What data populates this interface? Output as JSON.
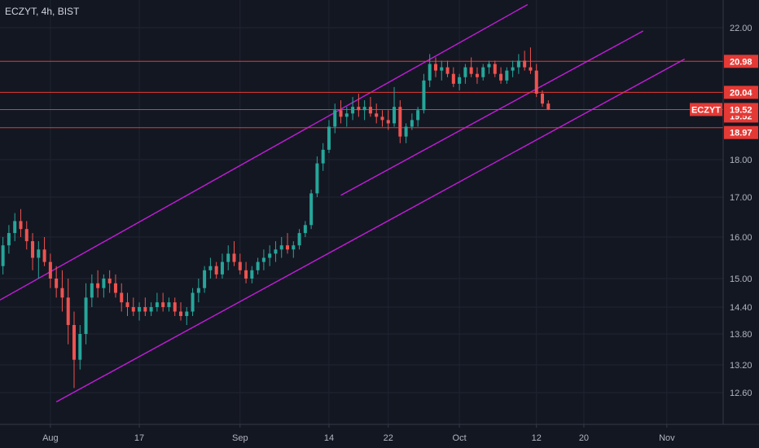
{
  "header": {
    "title": "ECZYT, 4h, BIST"
  },
  "chart_data": {
    "type": "candlestick",
    "symbol": "ECZYT",
    "interval": "4h",
    "exchange": "BIST",
    "ylim": [
      12.0,
      22.7
    ],
    "y_ticks": [
      "22.00",
      "18.00",
      "17.00",
      "16.00",
      "15.00",
      "14.40",
      "13.80",
      "13.20",
      "12.60"
    ],
    "x_ticks": [
      {
        "label": "Aug",
        "i": 8
      },
      {
        "label": "17",
        "i": 23
      },
      {
        "label": "Sep",
        "i": 40
      },
      {
        "label": "14",
        "i": 55
      },
      {
        "label": "22",
        "i": 65
      },
      {
        "label": "Oct",
        "i": 77
      },
      {
        "label": "12",
        "i": 90
      },
      {
        "label": "20",
        "i": 98
      },
      {
        "label": "Nov",
        "i": 112
      }
    ],
    "n_slots": 122,
    "horizontal_levels": [
      {
        "value": 20.98,
        "label": "20.98",
        "color": "#e53935"
      },
      {
        "value": 20.04,
        "label": "20.04",
        "color": "#e53935"
      },
      {
        "value": 19.52,
        "label": "19.52",
        "color": "#e53935"
      },
      {
        "value": 18.97,
        "label": "18.97",
        "color": "#e53935"
      }
    ],
    "last_price": {
      "value": 19.52,
      "label": "19.52",
      "symbol_label": "ECZYT",
      "color": "#e53935"
    },
    "channel_lines": [
      {
        "i1": -0.5,
        "p1": 14.55,
        "i2": 88.5,
        "p2": 22.7
      },
      {
        "i1": 57,
        "p1": 17.05,
        "i2": 108,
        "p2": 21.9
      },
      {
        "i1": 9,
        "p1": 12.4,
        "i2": 115,
        "p2": 21.05
      }
    ],
    "up_color": "#26a69a",
    "down_color": "#ef5350",
    "channel_color": "#c21cd9",
    "candles": [
      [
        15.3,
        16.0,
        15.1,
        15.8
      ],
      [
        15.8,
        16.3,
        15.6,
        16.1
      ],
      [
        16.1,
        16.6,
        15.9,
        16.4
      ],
      [
        16.4,
        16.7,
        16.0,
        16.2
      ],
      [
        16.2,
        16.4,
        15.7,
        15.9
      ],
      [
        15.9,
        16.1,
        15.2,
        15.5
      ],
      [
        15.5,
        15.9,
        15.0,
        15.7
      ],
      [
        15.7,
        16.0,
        15.3,
        15.4
      ],
      [
        15.4,
        15.6,
        14.8,
        15.0
      ],
      [
        15.0,
        15.3,
        14.6,
        14.8
      ],
      [
        14.8,
        15.2,
        14.3,
        14.6
      ],
      [
        14.6,
        15.0,
        13.6,
        14.0
      ],
      [
        14.0,
        14.3,
        12.7,
        13.3
      ],
      [
        13.3,
        14.0,
        13.1,
        13.8
      ],
      [
        13.8,
        14.9,
        13.6,
        14.6
      ],
      [
        14.6,
        15.1,
        14.4,
        14.9
      ],
      [
        14.9,
        15.2,
        14.6,
        14.8
      ],
      [
        14.8,
        15.1,
        14.6,
        15.0
      ],
      [
        15.0,
        15.2,
        14.7,
        14.9
      ],
      [
        14.9,
        15.1,
        14.6,
        14.7
      ],
      [
        14.7,
        14.9,
        14.3,
        14.5
      ],
      [
        14.5,
        14.7,
        14.2,
        14.4
      ],
      [
        14.4,
        14.6,
        14.2,
        14.3
      ],
      [
        14.3,
        14.5,
        14.1,
        14.4
      ],
      [
        14.4,
        14.6,
        14.2,
        14.3
      ],
      [
        14.3,
        14.5,
        14.2,
        14.4
      ],
      [
        14.4,
        14.7,
        14.3,
        14.5
      ],
      [
        14.5,
        14.7,
        14.3,
        14.4
      ],
      [
        14.4,
        14.6,
        14.3,
        14.5
      ],
      [
        14.5,
        14.6,
        14.2,
        14.3
      ],
      [
        14.3,
        14.5,
        14.1,
        14.2
      ],
      [
        14.2,
        14.4,
        14.0,
        14.3
      ],
      [
        14.3,
        14.8,
        14.2,
        14.7
      ],
      [
        14.7,
        15.0,
        14.5,
        14.8
      ],
      [
        14.8,
        15.3,
        14.7,
        15.2
      ],
      [
        15.2,
        15.5,
        15.0,
        15.3
      ],
      [
        15.3,
        15.4,
        15.0,
        15.1
      ],
      [
        15.1,
        15.6,
        15.0,
        15.4
      ],
      [
        15.4,
        15.8,
        15.2,
        15.6
      ],
      [
        15.6,
        15.9,
        15.3,
        15.4
      ],
      [
        15.4,
        15.6,
        15.1,
        15.2
      ],
      [
        15.2,
        15.4,
        14.9,
        15.0
      ],
      [
        15.0,
        15.3,
        14.9,
        15.2
      ],
      [
        15.2,
        15.5,
        15.1,
        15.4
      ],
      [
        15.4,
        15.7,
        15.2,
        15.5
      ],
      [
        15.5,
        15.8,
        15.3,
        15.6
      ],
      [
        15.6,
        15.9,
        15.4,
        15.7
      ],
      [
        15.7,
        16.0,
        15.5,
        15.8
      ],
      [
        15.8,
        16.1,
        15.6,
        15.7
      ],
      [
        15.7,
        15.9,
        15.5,
        15.8
      ],
      [
        15.8,
        16.2,
        15.7,
        16.1
      ],
      [
        16.1,
        16.4,
        16.0,
        16.3
      ],
      [
        16.3,
        17.2,
        16.2,
        17.1
      ],
      [
        17.1,
        18.1,
        17.0,
        17.9
      ],
      [
        17.9,
        18.5,
        17.7,
        18.3
      ],
      [
        18.3,
        19.2,
        18.2,
        19.0
      ],
      [
        19.0,
        19.7,
        18.8,
        19.5
      ],
      [
        19.5,
        19.8,
        19.1,
        19.3
      ],
      [
        19.3,
        19.6,
        19.0,
        19.4
      ],
      [
        19.4,
        19.9,
        19.2,
        19.6
      ],
      [
        19.6,
        20.0,
        19.3,
        19.5
      ],
      [
        19.5,
        19.8,
        19.2,
        19.6
      ],
      [
        19.6,
        19.9,
        19.3,
        19.4
      ],
      [
        19.4,
        19.7,
        19.1,
        19.3
      ],
      [
        19.3,
        19.5,
        19.0,
        19.2
      ],
      [
        19.2,
        19.5,
        18.9,
        19.1
      ],
      [
        19.1,
        20.2,
        19.0,
        19.6
      ],
      [
        19.6,
        19.8,
        18.5,
        18.7
      ],
      [
        18.7,
        19.1,
        18.5,
        19.0
      ],
      [
        19.0,
        19.4,
        18.9,
        19.2
      ],
      [
        19.2,
        19.6,
        19.0,
        19.5
      ],
      [
        19.5,
        20.6,
        19.4,
        20.4
      ],
      [
        20.4,
        21.2,
        20.2,
        20.9
      ],
      [
        20.9,
        21.1,
        20.5,
        20.7
      ],
      [
        20.7,
        21.0,
        20.4,
        20.8
      ],
      [
        20.8,
        21.0,
        20.5,
        20.6
      ],
      [
        20.6,
        20.8,
        20.2,
        20.3
      ],
      [
        20.3,
        20.6,
        20.1,
        20.5
      ],
      [
        20.5,
        20.9,
        20.3,
        20.8
      ],
      [
        20.8,
        21.1,
        20.5,
        20.6
      ],
      [
        20.6,
        20.8,
        20.3,
        20.5
      ],
      [
        20.5,
        20.9,
        20.4,
        20.8
      ],
      [
        20.8,
        21.0,
        20.6,
        20.9
      ],
      [
        20.9,
        21.0,
        20.5,
        20.6
      ],
      [
        20.6,
        20.8,
        20.3,
        20.4
      ],
      [
        20.4,
        20.8,
        20.3,
        20.7
      ],
      [
        20.7,
        21.0,
        20.5,
        20.8
      ],
      [
        20.8,
        21.2,
        20.6,
        21.0
      ],
      [
        21.0,
        21.3,
        20.7,
        20.8
      ],
      [
        20.8,
        21.4,
        20.6,
        20.7
      ],
      [
        20.7,
        20.9,
        19.9,
        20.0
      ],
      [
        20.0,
        20.1,
        19.6,
        19.7
      ],
      [
        19.7,
        19.8,
        19.5,
        19.52
      ]
    ]
  }
}
